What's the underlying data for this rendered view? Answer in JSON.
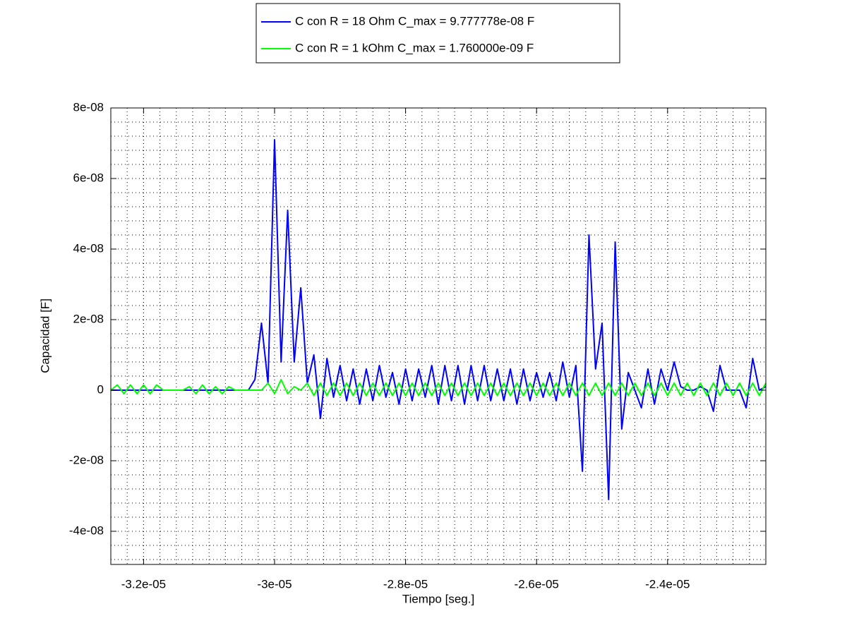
{
  "chart_data": {
    "type": "line",
    "xlabel": "Tiempo [seg.]",
    "ylabel": "Capacidad [F]",
    "x": [
      -3.25e-05,
      -3.24e-05,
      -3.23e-05,
      -3.22e-05,
      -3.21e-05,
      -3.2e-05,
      -3.19e-05,
      -3.18e-05,
      -3.17e-05,
      -3.16e-05,
      -3.15e-05,
      -3.14e-05,
      -3.13e-05,
      -3.12e-05,
      -3.11e-05,
      -3.1e-05,
      -3.09e-05,
      -3.08e-05,
      -3.07e-05,
      -3.06e-05,
      -3.05e-05,
      -3.04e-05,
      -3.03e-05,
      -3.02e-05,
      -3.01e-05,
      -3e-05,
      -2.99e-05,
      -2.98e-05,
      -2.97e-05,
      -2.96e-05,
      -2.95e-05,
      -2.94e-05,
      -2.93e-05,
      -2.92e-05,
      -2.91e-05,
      -2.9e-05,
      -2.89e-05,
      -2.88e-05,
      -2.87e-05,
      -2.86e-05,
      -2.85e-05,
      -2.84e-05,
      -2.83e-05,
      -2.82e-05,
      -2.81e-05,
      -2.8e-05,
      -2.79e-05,
      -2.78e-05,
      -2.77e-05,
      -2.76e-05,
      -2.75e-05,
      -2.74e-05,
      -2.73e-05,
      -2.72e-05,
      -2.71e-05,
      -2.7e-05,
      -2.69e-05,
      -2.68e-05,
      -2.67e-05,
      -2.66e-05,
      -2.65e-05,
      -2.64e-05,
      -2.63e-05,
      -2.62e-05,
      -2.61e-05,
      -2.6e-05,
      -2.59e-05,
      -2.58e-05,
      -2.57e-05,
      -2.56e-05,
      -2.55e-05,
      -2.54e-05,
      -2.53e-05,
      -2.52e-05,
      -2.51e-05,
      -2.5e-05,
      -2.49e-05,
      -2.48e-05,
      -2.47e-05,
      -2.46e-05,
      -2.45e-05,
      -2.44e-05,
      -2.43e-05,
      -2.42e-05,
      -2.41e-05,
      -2.4e-05,
      -2.39e-05,
      -2.38e-05,
      -2.37e-05,
      -2.36e-05,
      -2.35e-05,
      -2.34e-05,
      -2.33e-05,
      -2.32e-05,
      -2.31e-05,
      -2.3e-05,
      -2.29e-05,
      -2.28e-05,
      -2.27e-05,
      -2.26e-05,
      -2.25e-05
    ],
    "series": [
      {
        "name": "C con R = 18 Ohm C_max = 9.777778e-08 F",
        "color": "#0000ff",
        "values": [
          0,
          0,
          0,
          0,
          0,
          0,
          0,
          0,
          0,
          0,
          0,
          0,
          0,
          0,
          0,
          0,
          0,
          0,
          0,
          0,
          0,
          0,
          3e-09,
          1.9e-08,
          2e-09,
          7.1e-08,
          8e-09,
          5.1e-08,
          8e-09,
          2.9e-08,
          2e-09,
          1e-08,
          -8e-09,
          9e-09,
          -2e-09,
          7e-09,
          -3e-09,
          6e-09,
          -4e-09,
          6e-09,
          -3e-09,
          7e-09,
          -2e-09,
          5e-09,
          -4e-09,
          6e-09,
          -3e-09,
          6e-09,
          -2e-09,
          7e-09,
          -4e-09,
          7e-09,
          -3e-09,
          7e-09,
          -4e-09,
          7e-09,
          -3e-09,
          7e-09,
          -3e-09,
          6e-09,
          -3e-09,
          6e-09,
          -4e-09,
          6e-09,
          -3e-09,
          5e-09,
          -2e-09,
          5e-09,
          -3e-09,
          8e-09,
          -2e-09,
          7e-09,
          -2.3e-08,
          4.4e-08,
          6e-09,
          1.9e-08,
          -3.1e-08,
          4.2e-08,
          -1.1e-08,
          5e-09,
          0,
          -5e-09,
          6e-09,
          -4e-09,
          6e-09,
          0,
          8e-09,
          1e-09,
          0,
          0,
          1e-09,
          0,
          -6e-09,
          7e-09,
          0,
          0,
          0,
          -5e-09,
          9e-09,
          0,
          1e-09
        ]
      },
      {
        "name": "C con R = 1 kOhm C_max = 1.760000e-09 F",
        "color": "#00ff00",
        "values": [
          0,
          1.5e-09,
          -1e-09,
          1.5e-09,
          -1e-09,
          1.5e-09,
          -1e-09,
          1.5e-09,
          0,
          0,
          0,
          0,
          1e-09,
          -1e-09,
          1.5e-09,
          -1e-09,
          1e-09,
          -1e-09,
          1e-09,
          0,
          0,
          0,
          0,
          0,
          2e-09,
          -1e-09,
          3e-09,
          -1e-09,
          1e-09,
          0,
          2e-09,
          -1.5e-09,
          2e-09,
          -1.5e-09,
          2e-09,
          -1.5e-09,
          2e-09,
          -1.5e-09,
          2e-09,
          -1.5e-09,
          2e-09,
          -1.5e-09,
          2e-09,
          -1.5e-09,
          2e-09,
          -1.5e-09,
          2e-09,
          -1.5e-09,
          2e-09,
          -1.5e-09,
          2e-09,
          -1.5e-09,
          2e-09,
          -1.5e-09,
          2e-09,
          -1.5e-09,
          2e-09,
          -1.5e-09,
          2e-09,
          -1.5e-09,
          2e-09,
          -1.5e-09,
          2e-09,
          -1.5e-09,
          2e-09,
          -1.5e-09,
          2e-09,
          -1.5e-09,
          2e-09,
          -1.5e-09,
          2e-09,
          -1.5e-09,
          2e-09,
          -1.5e-09,
          2e-09,
          -1.5e-09,
          2e-09,
          -1.5e-09,
          2e-09,
          -1.5e-09,
          2e-09,
          -1.5e-09,
          2e-09,
          -1.5e-09,
          2e-09,
          -1.5e-09,
          2e-09,
          -1.5e-09,
          2e-09,
          -1.5e-09,
          2e-09,
          -1.5e-09,
          2e-09,
          -1.5e-09,
          2e-09,
          -1.5e-09,
          2e-09,
          -1.5e-09,
          2e-09,
          -1.5e-09,
          2e-09
        ]
      }
    ],
    "xlim": [
      -3.25e-05,
      -2.25e-05
    ],
    "ylim": [
      -4.94e-08,
      8e-08
    ],
    "xticks": [
      {
        "value": -3.2e-05,
        "label": "-3.2e-05"
      },
      {
        "value": -3e-05,
        "label": "-3e-05"
      },
      {
        "value": -2.8e-05,
        "label": "-2.8e-05"
      },
      {
        "value": -2.6e-05,
        "label": "-2.6e-05"
      },
      {
        "value": -2.4e-05,
        "label": "-2.4e-05"
      }
    ],
    "yticks": [
      {
        "value": -4e-08,
        "label": "-4e-08"
      },
      {
        "value": -2e-08,
        "label": "-2e-08"
      },
      0,
      {
        "value": 2e-08,
        "label": "2e-08"
      },
      {
        "value": 4e-08,
        "label": "4e-08"
      },
      {
        "value": 6e-08,
        "label": "6e-08"
      },
      {
        "value": 8e-08,
        "label": "8e-08"
      }
    ],
    "grid": true,
    "minor_grid": true,
    "legend": "top"
  }
}
